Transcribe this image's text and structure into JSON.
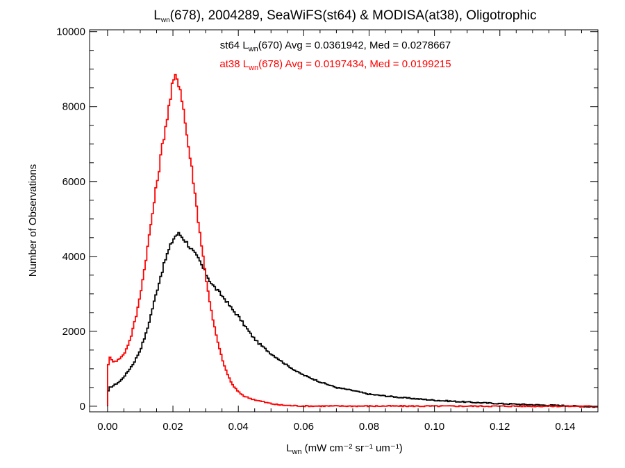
{
  "chart_data": {
    "type": "histogram",
    "title": {
      "prefix": "L",
      "sub": "wn",
      "rest": "(678), 2004289, SeaWiFS(st64) & MODISA(at38), Oligotrophic"
    },
    "xlabel": {
      "prefix": "L",
      "sub": "wn",
      "unit": "(mW cm⁻² sr⁻¹ um⁻¹)"
    },
    "ylabel": "Number of Observations",
    "xlim": [
      -0.0055,
      0.15
    ],
    "ylim": [
      -150,
      10050
    ],
    "xticks": [
      "0.00",
      "0.02",
      "0.04",
      "0.06",
      "0.08",
      "0.10",
      "0.12",
      "0.14"
    ],
    "xtick_values": [
      0.0,
      0.02,
      0.04,
      0.06,
      0.08,
      0.1,
      0.12,
      0.14
    ],
    "yticks": [
      "0",
      "2000",
      "4000",
      "6000",
      "8000",
      "10000"
    ],
    "ytick_values": [
      0,
      2000,
      4000,
      6000,
      8000,
      10000
    ],
    "grid": false,
    "series": [
      {
        "color": "#000000",
        "annotation": {
          "prefix": "st64 L",
          "sub": "wn",
          "rest": "(670) Avg = 0.0361942, Med = 0.0278667"
        },
        "anchors": [
          [
            0.0,
            0
          ],
          [
            0.0003,
            480
          ],
          [
            0.002,
            560
          ],
          [
            0.004,
            680
          ],
          [
            0.006,
            900
          ],
          [
            0.008,
            1150
          ],
          [
            0.01,
            1500
          ],
          [
            0.012,
            2000
          ],
          [
            0.014,
            2700
          ],
          [
            0.016,
            3400
          ],
          [
            0.018,
            4000
          ],
          [
            0.02,
            4450
          ],
          [
            0.021,
            4580
          ],
          [
            0.022,
            4600
          ],
          [
            0.024,
            4400
          ],
          [
            0.026,
            4150
          ],
          [
            0.028,
            3900
          ],
          [
            0.03,
            3550
          ],
          [
            0.032,
            3250
          ],
          [
            0.034,
            3050
          ],
          [
            0.036,
            2850
          ],
          [
            0.038,
            2600
          ],
          [
            0.04,
            2400
          ],
          [
            0.042,
            2150
          ],
          [
            0.044,
            1900
          ],
          [
            0.046,
            1700
          ],
          [
            0.048,
            1550
          ],
          [
            0.05,
            1400
          ],
          [
            0.052,
            1280
          ],
          [
            0.054,
            1150
          ],
          [
            0.056,
            1030
          ],
          [
            0.058,
            920
          ],
          [
            0.06,
            830
          ],
          [
            0.065,
            650
          ],
          [
            0.07,
            500
          ],
          [
            0.075,
            420
          ],
          [
            0.08,
            320
          ],
          [
            0.09,
            230
          ],
          [
            0.1,
            160
          ],
          [
            0.11,
            110
          ],
          [
            0.12,
            70
          ],
          [
            0.13,
            40
          ],
          [
            0.14,
            15
          ],
          [
            0.15,
            -20
          ]
        ]
      },
      {
        "color": "#ff0000",
        "annotation": {
          "prefix": "at38 L",
          "sub": "wn",
          "rest": "(678) Avg = 0.0197434, Med = 0.0199215"
        },
        "anchors": [
          [
            0.0,
            0
          ],
          [
            0.0003,
            1350
          ],
          [
            0.0015,
            1200
          ],
          [
            0.003,
            1220
          ],
          [
            0.005,
            1380
          ],
          [
            0.007,
            1800
          ],
          [
            0.009,
            2500
          ],
          [
            0.011,
            3500
          ],
          [
            0.013,
            4700
          ],
          [
            0.015,
            5900
          ],
          [
            0.017,
            7100
          ],
          [
            0.019,
            8100
          ],
          [
            0.02,
            8650
          ],
          [
            0.021,
            8800
          ],
          [
            0.022,
            8600
          ],
          [
            0.023,
            8100
          ],
          [
            0.024,
            7400
          ],
          [
            0.026,
            6200
          ],
          [
            0.028,
            4800
          ],
          [
            0.03,
            3500
          ],
          [
            0.032,
            2400
          ],
          [
            0.034,
            1600
          ],
          [
            0.036,
            1000
          ],
          [
            0.038,
            600
          ],
          [
            0.04,
            380
          ],
          [
            0.042,
            260
          ],
          [
            0.044,
            200
          ],
          [
            0.046,
            150
          ],
          [
            0.048,
            110
          ],
          [
            0.05,
            70
          ],
          [
            0.052,
            40
          ],
          [
            0.055,
            20
          ],
          [
            0.06,
            5
          ],
          [
            0.15,
            0
          ]
        ]
      }
    ]
  }
}
